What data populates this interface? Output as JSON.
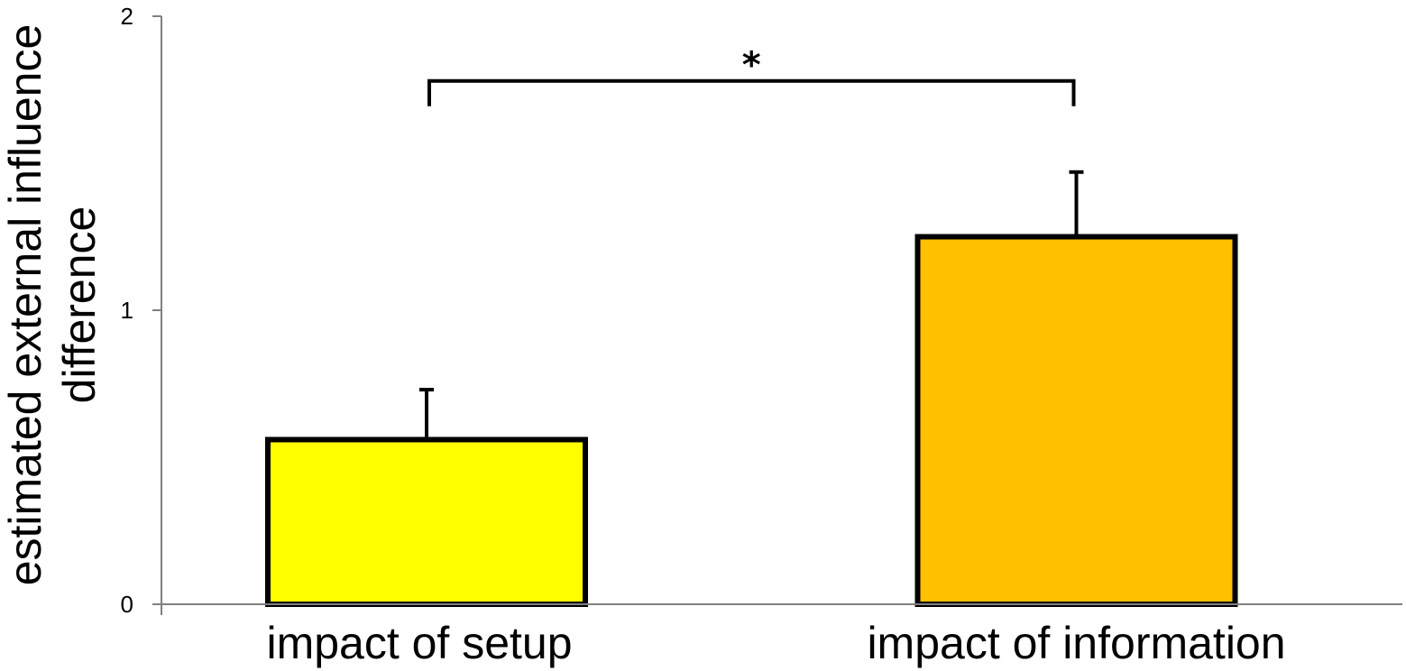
{
  "chart_data": {
    "type": "bar",
    "categories": [
      "impact of setup",
      "impact of information"
    ],
    "values": [
      0.56,
      1.25
    ],
    "errors": [
      0.17,
      0.22
    ],
    "bar_colors": [
      "#FFFF00",
      "#FFC000"
    ],
    "ylabel_lines": [
      "estimated external influence",
      "difference"
    ],
    "ylim": [
      0,
      2
    ],
    "yticks": [
      0,
      1,
      2
    ],
    "ytick_labels": [
      "0",
      "1",
      "2"
    ],
    "grid": false,
    "significance": {
      "between": [
        0,
        1
      ],
      "label": "*",
      "level": 1.78
    }
  }
}
